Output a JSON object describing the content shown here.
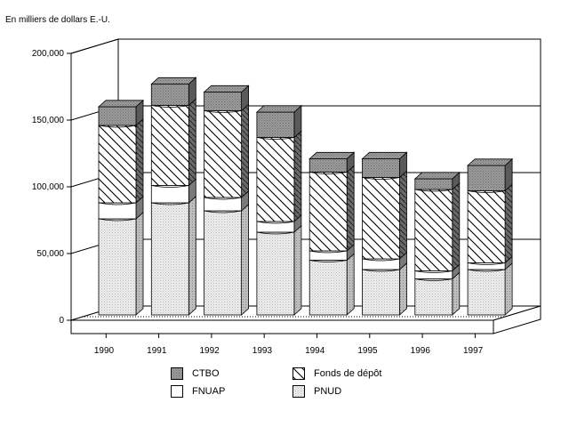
{
  "chart_data": {
    "type": "bar",
    "stacked": true,
    "three_d": true,
    "ylabel": "En milliers de dollars E.-U.",
    "categories": [
      "1990",
      "1991",
      "1992",
      "1993",
      "1994",
      "1995",
      "1996",
      "1997"
    ],
    "yticks": [
      "0",
      "50,000",
      "100,000",
      "150,000",
      "200,000"
    ],
    "ylim": [
      0,
      200000
    ],
    "grid": true,
    "legend_position": "bottom",
    "series": [
      {
        "name": "PNUD",
        "values": [
          72000,
          84000,
          78000,
          62000,
          41000,
          34000,
          27000,
          34000
        ],
        "pattern": "dots-light-gray"
      },
      {
        "name": "FNUAP",
        "values": [
          12000,
          13000,
          10000,
          8000,
          7000,
          8000,
          6000,
          5000
        ],
        "pattern": "white"
      },
      {
        "name": "Fonds de dépôt",
        "values": [
          58000,
          60000,
          65000,
          63000,
          59000,
          61000,
          61000,
          54000
        ],
        "pattern": "diagonal-hatch"
      },
      {
        "name": "CTBO",
        "values": [
          14000,
          16000,
          14000,
          19000,
          10000,
          14000,
          8000,
          19000
        ],
        "pattern": "dark-gray"
      }
    ],
    "legend": [
      {
        "name": "CTBO",
        "series": "CTBO"
      },
      {
        "name": "Fonds de dépôt",
        "series": "Fonds de dépôt"
      },
      {
        "name": "FNUAP",
        "series": "FNUAP"
      },
      {
        "name": "PNUD",
        "series": "PNUD"
      }
    ]
  }
}
